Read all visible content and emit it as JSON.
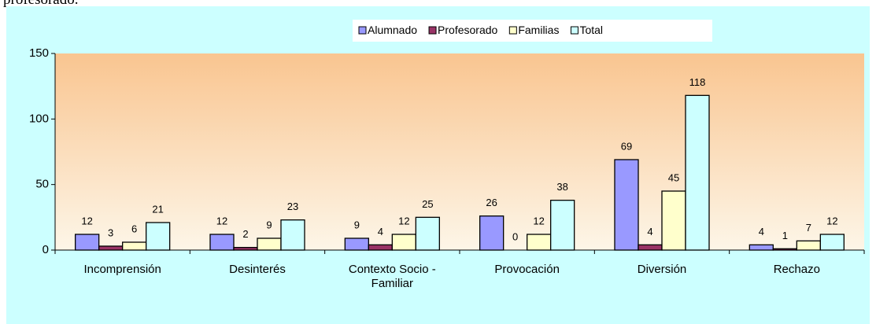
{
  "page_text": "profesorado.",
  "chart_data": {
    "type": "bar",
    "categories": [
      "Incomprensión",
      "Desinterés",
      "Contexto Socio - Familiar",
      "Provocación",
      "Diversión",
      "Rechazo"
    ],
    "series": [
      {
        "name": "Alumnado",
        "color": "#9999ff",
        "values": [
          12,
          12,
          9,
          26,
          69,
          4
        ]
      },
      {
        "name": "Profesorado",
        "color": "#993366",
        "values": [
          3,
          2,
          4,
          0,
          4,
          1
        ]
      },
      {
        "name": "Familias",
        "color": "#ffffcc",
        "values": [
          6,
          9,
          12,
          12,
          45,
          7
        ]
      },
      {
        "name": "Total",
        "color": "#ccffff",
        "values": [
          21,
          23,
          25,
          38,
          118,
          12
        ]
      }
    ],
    "ylim": [
      0,
      150
    ],
    "yticks": [
      0,
      50,
      100,
      150
    ],
    "legend": "top"
  }
}
